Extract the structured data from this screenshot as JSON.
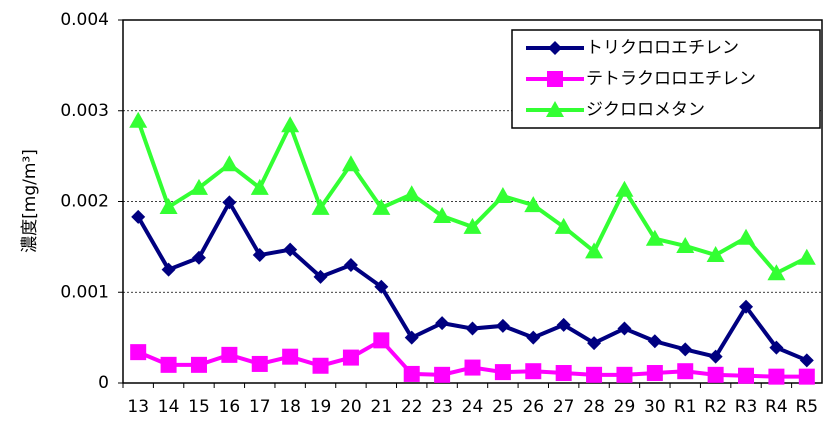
{
  "chart_data": {
    "type": "line",
    "y_label": "濃度[mg/m³]",
    "categories": [
      "13",
      "14",
      "15",
      "16",
      "17",
      "18",
      "19",
      "20",
      "21",
      "22",
      "23",
      "24",
      "25",
      "26",
      "27",
      "28",
      "29",
      "30",
      "R1",
      "R2",
      "R3",
      "R4",
      "R5"
    ],
    "series": [
      {
        "name": "トリクロロエチレン",
        "color": "#000080",
        "marker": "diamond",
        "values": [
          0.00183,
          0.00125,
          0.00138,
          0.00199,
          0.00141,
          0.00147,
          0.00117,
          0.0013,
          0.00106,
          0.0005,
          0.00066,
          0.0006,
          0.00063,
          0.0005,
          0.00064,
          0.00044,
          0.0006,
          0.00046,
          0.00037,
          0.00029,
          0.00084,
          0.00039,
          0.00025
        ]
      },
      {
        "name": "テトラクロロエチレン",
        "color": "#ff00ff",
        "marker": "square",
        "values": [
          0.00034,
          0.0002,
          0.0002,
          0.00031,
          0.00021,
          0.00029,
          0.00019,
          0.00028,
          0.00047,
          0.0001,
          9e-05,
          0.00017,
          0.00012,
          0.00013,
          0.00011,
          9e-05,
          9e-05,
          0.00011,
          0.00013,
          9e-05,
          8e-05,
          7e-05,
          7e-05
        ]
      },
      {
        "name": "ジクロロメタン",
        "color": "#33ff33",
        "marker": "triangle",
        "values": [
          0.00289,
          0.00194,
          0.00215,
          0.00241,
          0.00215,
          0.00284,
          0.00193,
          0.00241,
          0.00193,
          0.00208,
          0.00184,
          0.00172,
          0.00206,
          0.00196,
          0.00172,
          0.00145,
          0.00213,
          0.00159,
          0.00151,
          0.00141,
          0.0016,
          0.00121,
          0.00138
        ]
      }
    ],
    "ylim": [
      0,
      0.004
    ],
    "yticks": [
      0,
      0.001,
      0.002,
      0.003,
      0.004
    ],
    "grid": true,
    "legend": "top-right"
  }
}
